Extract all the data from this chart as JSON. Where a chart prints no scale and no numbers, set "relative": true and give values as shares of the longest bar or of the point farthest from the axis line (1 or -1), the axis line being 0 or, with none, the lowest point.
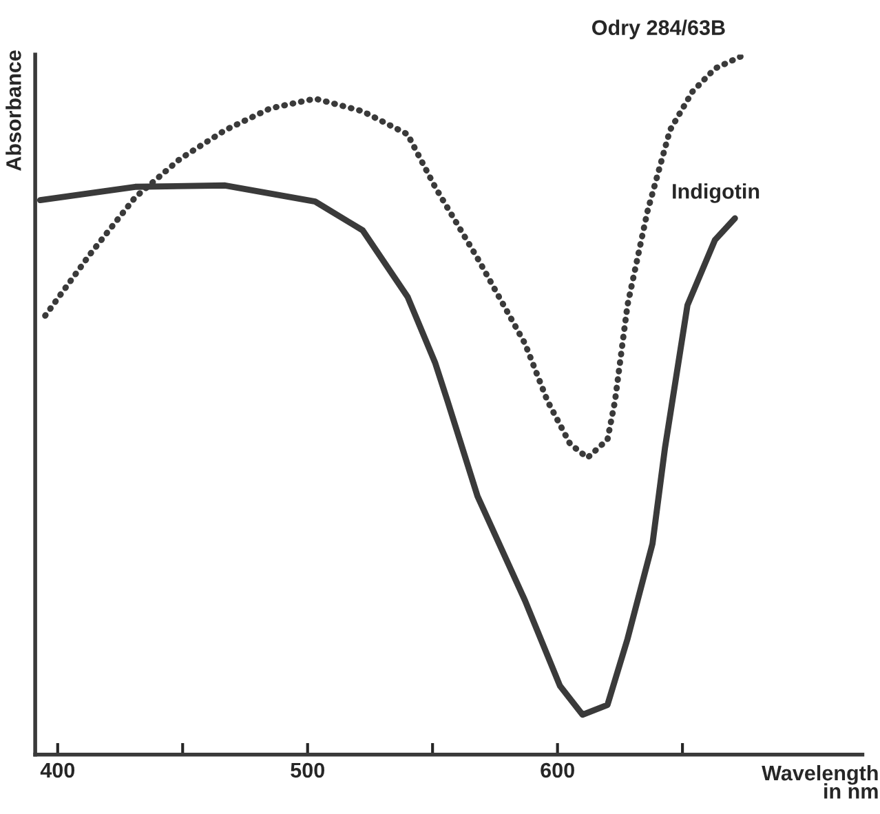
{
  "chart_data": {
    "type": "line",
    "relative": true,
    "xlabel": "Wavelength\nin nm",
    "ylabel": "Absorbance",
    "xlim": [
      391,
      722
    ],
    "xticks": [
      400,
      {
        "value": 450,
        "label": null
      },
      500,
      {
        "value": 550,
        "label": null
      },
      600,
      {
        "value": 650,
        "label": null
      }
    ],
    "grid": false,
    "legend": false,
    "tick_labels": "x",
    "series": [
      {
        "name": "Odry 284/63B",
        "color": "#3a3a3a",
        "line_style": "dotted",
        "x": [
          395,
          413,
          431,
          449,
          467,
          485,
          503,
          522,
          540,
          551,
          568,
          587,
          596,
          605,
          612,
          620,
          623,
          628,
          636,
          645,
          654,
          663,
          675
        ],
        "values": [
          0.627,
          0.715,
          0.796,
          0.851,
          0.892,
          0.923,
          0.937,
          0.919,
          0.886,
          0.811,
          0.709,
          0.587,
          0.505,
          0.444,
          0.424,
          0.45,
          0.505,
          0.642,
          0.776,
          0.892,
          0.947,
          0.98,
          1.0
        ]
      },
      {
        "name": "Indigotin",
        "color": "#3a3a3a",
        "line_style": "solid",
        "x": [
          393,
          431,
          467,
          503,
          522,
          540,
          551,
          556,
          568,
          587,
          601,
          610,
          620,
          628,
          638,
          643,
          652,
          663,
          671
        ],
        "values": [
          0.792,
          0.811,
          0.813,
          0.79,
          0.749,
          0.654,
          0.56,
          0.505,
          0.369,
          0.22,
          0.098,
          0.057,
          0.071,
          0.165,
          0.301,
          0.438,
          0.642,
          0.735,
          0.766
        ]
      }
    ]
  }
}
